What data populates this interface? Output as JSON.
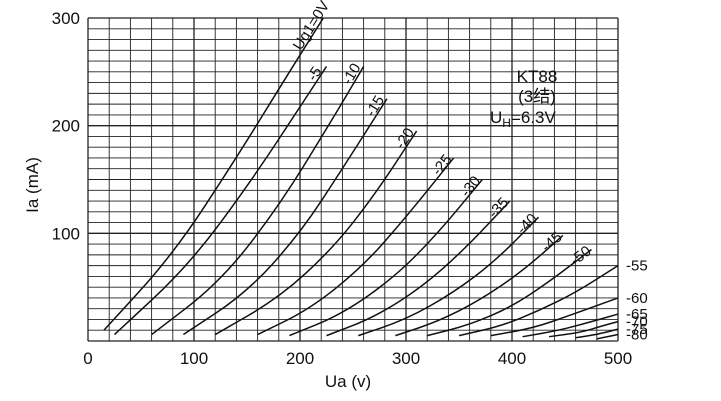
{
  "chart_data": {
    "type": "line",
    "title": "",
    "xlabel": "Ua (v)",
    "ylabel": "Ia (mA)",
    "xlim": [
      0,
      500
    ],
    "ylim": [
      0,
      300
    ],
    "x_ticks": [
      "0",
      "100",
      "200",
      "300",
      "400",
      "500"
    ],
    "y_ticks": [
      "100",
      "200",
      "300"
    ],
    "grid": true,
    "annotation": {
      "tube": "KT88",
      "pin": "(3结)",
      "heater_main": "U",
      "heater_sub": "H",
      "heater_value": "=6.3V"
    },
    "series": [
      {
        "name": "Ug1=0V",
        "x": [
          15,
          80,
          140,
          190,
          222
        ],
        "y": [
          10,
          80,
          170,
          250,
          300
        ]
      },
      {
        "name": "-5",
        "x": [
          25,
          95,
          155,
          205,
          225
        ],
        "y": [
          6,
          70,
          150,
          225,
          255
        ]
      },
      {
        "name": "-10",
        "x": [
          60,
          125,
          180,
          230,
          260
        ],
        "y": [
          6,
          55,
          125,
          205,
          255
        ]
      },
      {
        "name": "-15",
        "x": [
          90,
          150,
          200,
          240,
          282
        ],
        "y": [
          6,
          45,
          100,
          160,
          225
        ]
      },
      {
        "name": "-20",
        "x": [
          120,
          180,
          230,
          270,
          310
        ],
        "y": [
          6,
          40,
          85,
          135,
          195
        ]
      },
      {
        "name": "-25",
        "x": [
          160,
          210,
          260,
          300,
          345
        ],
        "y": [
          6,
          30,
          70,
          115,
          170
        ]
      },
      {
        "name": "-30",
        "x": [
          190,
          240,
          290,
          330,
          372
        ],
        "y": [
          5,
          25,
          60,
          100,
          150
        ]
      },
      {
        "name": "-35",
        "x": [
          225,
          270,
          315,
          355,
          398
        ],
        "y": [
          5,
          22,
          50,
          85,
          130
        ]
      },
      {
        "name": "-40",
        "x": [
          255,
          300,
          345,
          385,
          425
        ],
        "y": [
          5,
          20,
          45,
          75,
          115
        ]
      },
      {
        "name": "-45",
        "x": [
          290,
          330,
          370,
          410,
          448
        ],
        "y": [
          5,
          18,
          38,
          65,
          98
        ]
      },
      {
        "name": "-50",
        "x": [
          320,
          360,
          400,
          435,
          475
        ],
        "y": [
          5,
          15,
          32,
          55,
          85
        ]
      },
      {
        "name": "-55",
        "x": [
          350,
          390,
          425,
          460,
          500
        ],
        "y": [
          5,
          14,
          28,
          45,
          70
        ]
      },
      {
        "name": "-60",
        "x": [
          380,
          420,
          455,
          500
        ],
        "y": [
          5,
          12,
          24,
          40
        ]
      },
      {
        "name": "-65",
        "x": [
          410,
          445,
          475,
          500
        ],
        "y": [
          4,
          10,
          18,
          25
        ]
      },
      {
        "name": "-70",
        "x": [
          435,
          465,
          485,
          500
        ],
        "y": [
          4,
          8,
          14,
          18
        ]
      },
      {
        "name": "-75",
        "x": [
          460,
          480,
          500
        ],
        "y": [
          3,
          6,
          11
        ]
      },
      {
        "name": "-80",
        "x": [
          480,
          490,
          500
        ],
        "y": [
          2,
          4,
          6
        ]
      }
    ]
  }
}
